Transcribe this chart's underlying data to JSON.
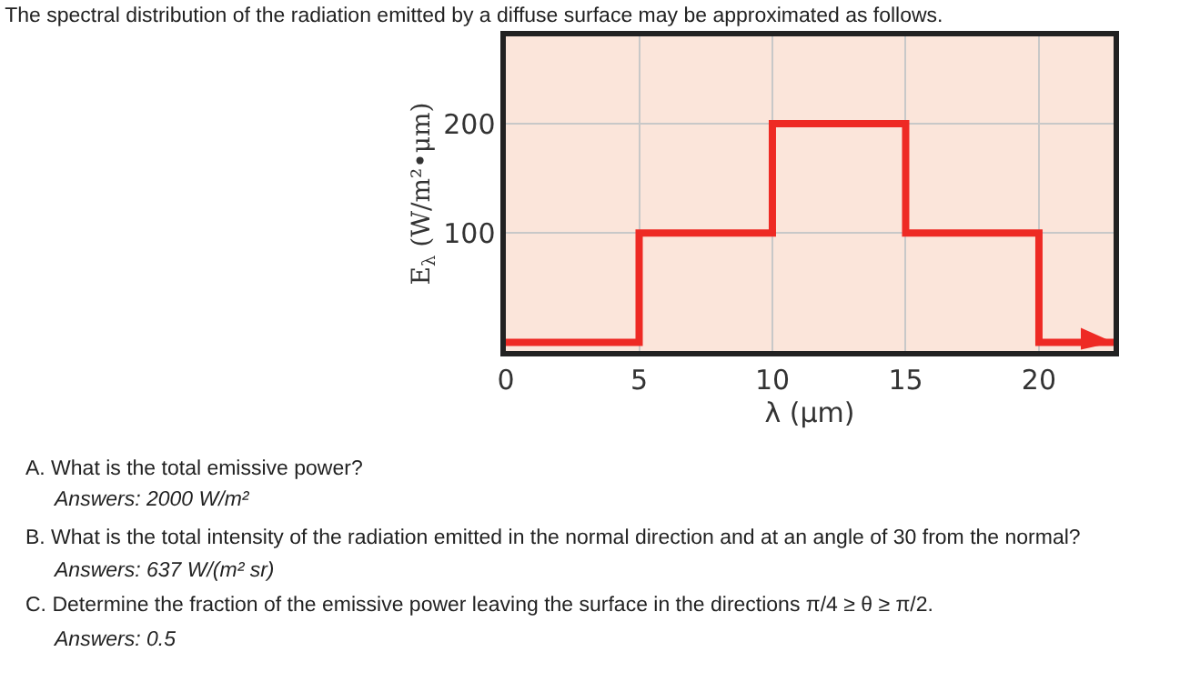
{
  "chart_data": {
    "type": "step",
    "title": "The spectral distribution of the radiation emitted by a diffuse surface may be approximated as follows.",
    "xlabel": "λ (μm)",
    "ylabel": "E$_{λ}$ (W/m²•μm)",
    "x": [
      0,
      5,
      10,
      15,
      20,
      22.8
    ],
    "series": [
      {
        "color": "#ee2a24",
        "values": [
          0,
          100,
          200,
          100,
          0,
          0
        ]
      }
    ],
    "xlim": [
      0,
      22.8
    ],
    "xticks": [
      0,
      5,
      10,
      15,
      20
    ],
    "ylim": [
      -8,
      280
    ],
    "yticks": [
      100,
      200
    ],
    "grid": true,
    "annotations": [
      "A. What is the total emissive power?",
      "Answers: 2000 W/m²",
      "B. What is the total intensity of the radiation emitted in the normal direction and at an angle of 30 from the normal?",
      "Answers: 637 W/(m² sr)",
      "C. Determine the fraction of the emissive power leaving the surface in the directions π/4 ≥ θ ≥ π/2.",
      "Answers: 0.5"
    ]
  }
}
